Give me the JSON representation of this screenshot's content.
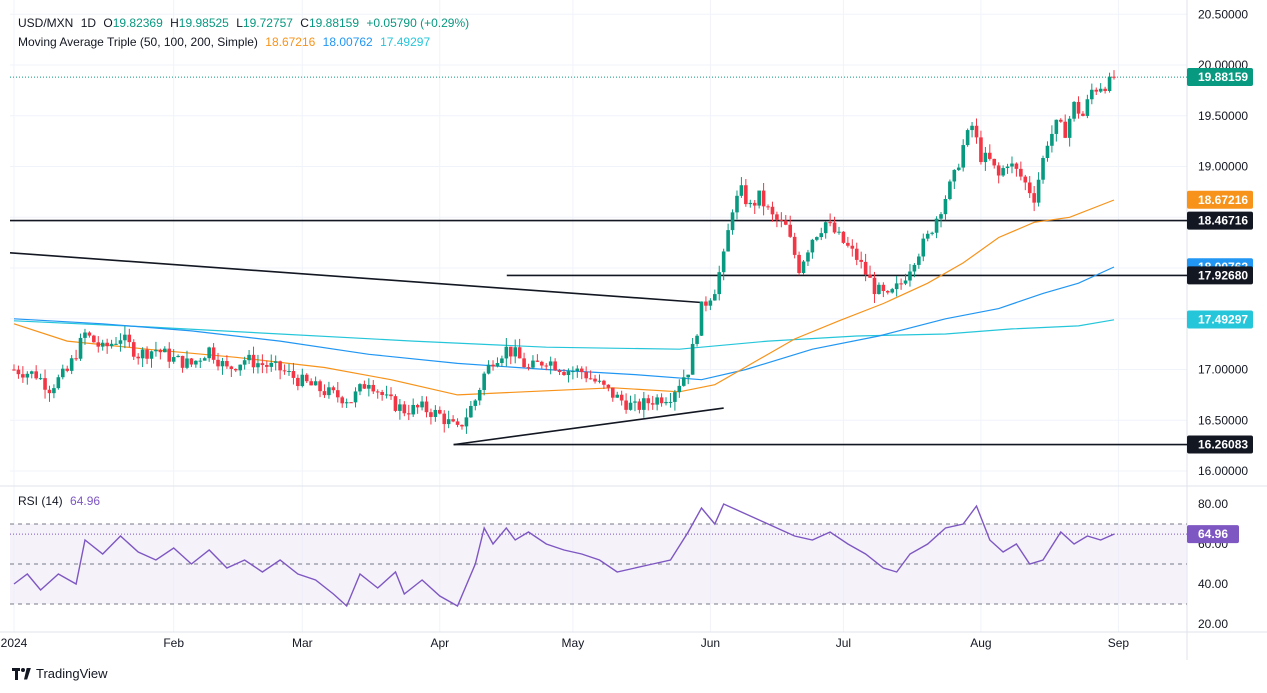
{
  "header": {
    "symbol": "USD/MXN",
    "interval": "1D",
    "open_label": "O",
    "open": "19.82369",
    "high_label": "H",
    "high": "19.98525",
    "low_label": "L",
    "low": "19.72757",
    "close_label": "C",
    "close": "19.88159",
    "change": "+0.05790 (+0.29%)"
  },
  "ma_legend": {
    "title": "Moving Average Triple (50, 100, 200, Simple)",
    "ma50": "18.67216",
    "ma100": "18.00762",
    "ma200": "17.49297"
  },
  "rsi_legend": {
    "title": "RSI (14)",
    "value": "64.96"
  },
  "brand": "TradingView",
  "colors": {
    "up": "#089981",
    "down": "#f23645",
    "ma50": "#f7931a",
    "ma100": "#2196f3",
    "ma200": "#26c6da",
    "rsi": "#7e57c2",
    "level": "#131722"
  },
  "chart_data": {
    "type": "candlestick",
    "price_axis": {
      "ticks": [
        16.0,
        16.5,
        17.0,
        17.5,
        18.0,
        18.5,
        19.0,
        19.5,
        20.0,
        20.5
      ],
      "tick_labels": [
        "16.00000",
        "16.50000",
        "17.00000",
        "17.50000",
        "18.00000",
        "18.50000",
        "19.00000",
        "19.50000",
        "20.00000",
        "20.50000"
      ]
    },
    "price_labels": [
      {
        "value": 19.88159,
        "text": "19.88159",
        "color": "#089981"
      },
      {
        "value": 18.67216,
        "text": "18.67216",
        "color": "#f7931a"
      },
      {
        "value": 18.46716,
        "text": "18.46716",
        "color": "#131722"
      },
      {
        "value": 18.00762,
        "text": "18.00762",
        "color": "#2196f3"
      },
      {
        "value": 17.9268,
        "text": "17.92680",
        "color": "#131722"
      },
      {
        "value": 17.49297,
        "text": "17.49297",
        "color": "#26c6da"
      },
      {
        "value": 16.26083,
        "text": "16.26083",
        "color": "#131722"
      }
    ],
    "x_axis_labels": [
      "2024",
      "Feb",
      "Mar",
      "Apr",
      "May",
      "Jun",
      "Jul",
      "Aug",
      "Sep"
    ],
    "x_axis_label_days": [
      0,
      36,
      65,
      96,
      126,
      157,
      187,
      218,
      249
    ],
    "last_day": 248,
    "horizontal_levels": [
      {
        "value": 18.46716,
        "from_day": 0,
        "to_day": 258
      },
      {
        "value": 17.9268,
        "from_day": 112,
        "to_day": 258
      },
      {
        "value": 16.26083,
        "from_day": 100,
        "to_day": 258
      }
    ],
    "trendlines": [
      {
        "from": [
          0,
          18.15
        ],
        "to": [
          155,
          17.66
        ]
      },
      {
        "from": [
          100,
          16.26
        ],
        "to": [
          160,
          16.62
        ]
      }
    ],
    "close_anchors": [
      [
        0,
        17.0
      ],
      [
        5,
        16.95
      ],
      [
        8,
        16.82
      ],
      [
        12,
        16.98
      ],
      [
        16,
        17.35
      ],
      [
        20,
        17.2
      ],
      [
        24,
        17.32
      ],
      [
        28,
        17.15
      ],
      [
        32,
        17.2
      ],
      [
        36,
        17.1
      ],
      [
        40,
        17.05
      ],
      [
        44,
        17.2
      ],
      [
        48,
        17.0
      ],
      [
        52,
        17.1
      ],
      [
        56,
        17.05
      ],
      [
        60,
        17.0
      ],
      [
        64,
        16.9
      ],
      [
        68,
        16.82
      ],
      [
        72,
        16.75
      ],
      [
        76,
        16.7
      ],
      [
        80,
        16.9
      ],
      [
        84,
        16.7
      ],
      [
        88,
        16.6
      ],
      [
        92,
        16.62
      ],
      [
        96,
        16.55
      ],
      [
        100,
        16.4
      ],
      [
        104,
        16.7
      ],
      [
        106,
        16.95
      ],
      [
        108,
        17.1
      ],
      [
        111,
        17.2
      ],
      [
        113,
        17.15
      ],
      [
        116,
        17.0
      ],
      [
        120,
        17.1
      ],
      [
        124,
        17.0
      ],
      [
        128,
        16.98
      ],
      [
        132,
        16.85
      ],
      [
        136,
        16.72
      ],
      [
        140,
        16.62
      ],
      [
        144,
        16.7
      ],
      [
        148,
        16.75
      ],
      [
        152,
        17.0
      ],
      [
        155,
        17.6
      ],
      [
        158,
        17.8
      ],
      [
        160,
        18.1
      ],
      [
        162,
        18.6
      ],
      [
        164,
        18.75
      ],
      [
        166,
        18.6
      ],
      [
        168,
        18.7
      ],
      [
        171,
        18.5
      ],
      [
        174,
        18.4
      ],
      [
        177,
        18.0
      ],
      [
        180,
        18.3
      ],
      [
        183,
        18.45
      ],
      [
        186,
        18.3
      ],
      [
        190,
        18.1
      ],
      [
        194,
        17.8
      ],
      [
        197,
        17.7
      ],
      [
        200,
        17.85
      ],
      [
        203,
        18.1
      ],
      [
        206,
        18.3
      ],
      [
        209,
        18.6
      ],
      [
        212,
        18.9
      ],
      [
        214,
        19.2
      ],
      [
        216,
        19.4
      ],
      [
        218,
        19.1
      ],
      [
        220,
        19.05
      ],
      [
        222,
        18.9
      ],
      [
        224,
        19.05
      ],
      [
        227,
        18.9
      ],
      [
        230,
        18.7
      ],
      [
        233,
        19.25
      ],
      [
        235,
        19.4
      ],
      [
        237,
        19.35
      ],
      [
        239,
        19.6
      ],
      [
        241,
        19.5
      ],
      [
        243,
        19.75
      ],
      [
        245,
        19.8
      ],
      [
        247,
        19.82
      ],
      [
        248,
        19.88
      ]
    ],
    "ma50_points": [
      [
        0,
        17.45
      ],
      [
        12,
        17.28
      ],
      [
        30,
        17.2
      ],
      [
        50,
        17.12
      ],
      [
        70,
        17.02
      ],
      [
        85,
        16.9
      ],
      [
        100,
        16.75
      ],
      [
        115,
        16.78
      ],
      [
        135,
        16.82
      ],
      [
        150,
        16.78
      ],
      [
        158,
        16.85
      ],
      [
        166,
        17.05
      ],
      [
        176,
        17.3
      ],
      [
        186,
        17.48
      ],
      [
        196,
        17.65
      ],
      [
        206,
        17.85
      ],
      [
        214,
        18.05
      ],
      [
        222,
        18.3
      ],
      [
        230,
        18.45
      ],
      [
        238,
        18.5
      ],
      [
        248,
        18.67
      ]
    ],
    "ma100_points": [
      [
        0,
        17.5
      ],
      [
        20,
        17.45
      ],
      [
        40,
        17.38
      ],
      [
        60,
        17.28
      ],
      [
        80,
        17.15
      ],
      [
        100,
        17.06
      ],
      [
        120,
        17.0
      ],
      [
        140,
        16.95
      ],
      [
        155,
        16.9
      ],
      [
        165,
        17.0
      ],
      [
        180,
        17.2
      ],
      [
        195,
        17.33
      ],
      [
        210,
        17.5
      ],
      [
        222,
        17.6
      ],
      [
        232,
        17.75
      ],
      [
        240,
        17.85
      ],
      [
        248,
        18.01
      ]
    ],
    "ma200_points": [
      [
        0,
        17.48
      ],
      [
        30,
        17.42
      ],
      [
        60,
        17.35
      ],
      [
        90,
        17.28
      ],
      [
        120,
        17.22
      ],
      [
        150,
        17.2
      ],
      [
        170,
        17.28
      ],
      [
        190,
        17.33
      ],
      [
        210,
        17.35
      ],
      [
        225,
        17.4
      ],
      [
        240,
        17.43
      ],
      [
        248,
        17.49
      ]
    ],
    "rsi_axis": {
      "ticks": [
        20,
        40,
        60,
        80
      ],
      "tick_labels": [
        "20.00",
        "40.00",
        "60.00",
        "80.00"
      ],
      "bands": [
        70,
        50,
        30
      ]
    },
    "rsi_points": [
      [
        0,
        40
      ],
      [
        3,
        45
      ],
      [
        6,
        37
      ],
      [
        10,
        45
      ],
      [
        14,
        40
      ],
      [
        16,
        62
      ],
      [
        20,
        55
      ],
      [
        24,
        64
      ],
      [
        28,
        56
      ],
      [
        32,
        52
      ],
      [
        36,
        58
      ],
      [
        40,
        50
      ],
      [
        44,
        57
      ],
      [
        48,
        48
      ],
      [
        52,
        52
      ],
      [
        56,
        46
      ],
      [
        60,
        52
      ],
      [
        64,
        45
      ],
      [
        68,
        42
      ],
      [
        72,
        35
      ],
      [
        75,
        29
      ],
      [
        78,
        45
      ],
      [
        82,
        38
      ],
      [
        86,
        46
      ],
      [
        88,
        35
      ],
      [
        92,
        42
      ],
      [
        96,
        34
      ],
      [
        100,
        29
      ],
      [
        104,
        50
      ],
      [
        106,
        68
      ],
      [
        108,
        60
      ],
      [
        111,
        68
      ],
      [
        113,
        62
      ],
      [
        116,
        66
      ],
      [
        120,
        60
      ],
      [
        124,
        57
      ],
      [
        128,
        55
      ],
      [
        132,
        52
      ],
      [
        136,
        46
      ],
      [
        140,
        48
      ],
      [
        144,
        50
      ],
      [
        148,
        52
      ],
      [
        152,
        66
      ],
      [
        155,
        78
      ],
      [
        158,
        70
      ],
      [
        160,
        80
      ],
      [
        164,
        76
      ],
      [
        168,
        72
      ],
      [
        172,
        68
      ],
      [
        176,
        64
      ],
      [
        180,
        62
      ],
      [
        184,
        66
      ],
      [
        188,
        60
      ],
      [
        192,
        55
      ],
      [
        196,
        48
      ],
      [
        199,
        46
      ],
      [
        202,
        55
      ],
      [
        206,
        60
      ],
      [
        210,
        68
      ],
      [
        214,
        70
      ],
      [
        217,
        79
      ],
      [
        220,
        62
      ],
      [
        223,
        56
      ],
      [
        226,
        60
      ],
      [
        229,
        50
      ],
      [
        232,
        52
      ],
      [
        236,
        66
      ],
      [
        239,
        60
      ],
      [
        242,
        64
      ],
      [
        245,
        62
      ],
      [
        248,
        64.96
      ]
    ]
  }
}
